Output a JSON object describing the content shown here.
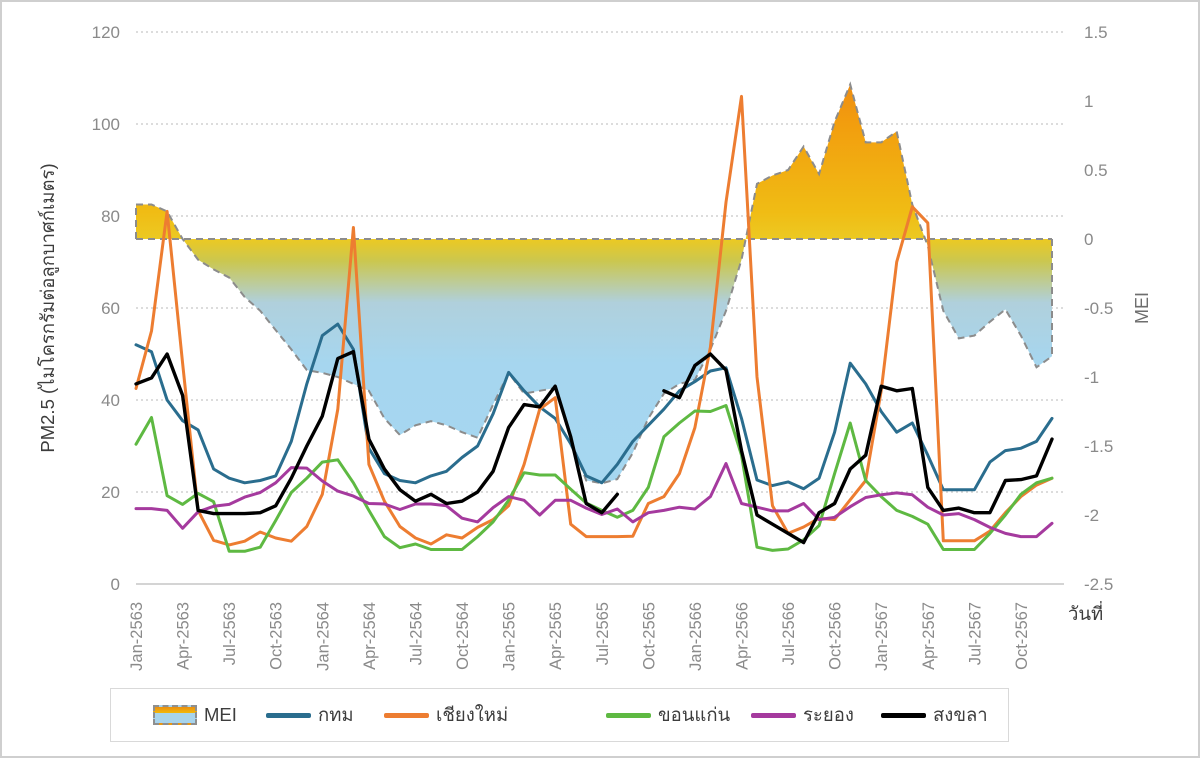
{
  "chart_data": {
    "type": "line",
    "description": "Monthly PM2.5 of 5 Thai provinces (lines, left axis) overlaid with MEI index (dashed-border gradient area, right axis), Jan 2563 - Dec 2567 (Buddhist era)",
    "n_points": 60,
    "points_per_tick": 3,
    "x_axis": {
      "label": "วันที่",
      "tick_labels": [
        "Jan-2563",
        "Apr-2563",
        "Jul-2563",
        "Oct-2563",
        "Jan-2564",
        "Apr-2564",
        "Jul-2564",
        "Oct-2564",
        "Jan-2565",
        "Apr-2565",
        "Jul-2565",
        "Oct-2565",
        "Jan-2566",
        "Apr-2566",
        "Jul-2566",
        "Oct-2566",
        "Jan-2567",
        "Apr-2567",
        "Jul-2567",
        "Oct-2567"
      ]
    },
    "left_axis": {
      "label": "PM2.5 (ไมโครกรัมต่อลูกบาศก์เมตร)",
      "ticks": [
        "0",
        "20",
        "40",
        "60",
        "80",
        "100",
        "120"
      ],
      "min": 0,
      "max": 120,
      "grid": true
    },
    "right_axis": {
      "label": "MEI",
      "ticks": [
        "1.5",
        "1",
        "0.5",
        "0",
        "-0.5",
        "-1",
        "-1.5",
        "-2",
        "-2.5"
      ],
      "min": -2.5,
      "max": 1.5
    },
    "area_series": {
      "name": "MEI",
      "axis": "right",
      "border_color": "#8c8c8c",
      "gradient": [
        {
          "offset": 0.0,
          "color": "#e97818"
        },
        {
          "offset": 0.163,
          "color": "#f29d0e"
        },
        {
          "offset": 0.326,
          "color": "#f0bc14"
        },
        {
          "offset": 0.375,
          "color": "#ecc922"
        },
        {
          "offset": 0.415,
          "color": "#cbc74f"
        },
        {
          "offset": 0.49,
          "color": "#b0d0dc"
        },
        {
          "offset": 0.6,
          "color": "#a6d6ef"
        },
        {
          "offset": 1.0,
          "color": "#a6d8f1"
        }
      ],
      "values": [
        0.25,
        0.25,
        0.2,
        0,
        -0.15,
        -0.22,
        -0.28,
        -0.42,
        -0.52,
        -0.66,
        -0.8,
        -0.95,
        -0.97,
        -1,
        -1.05,
        -1.1,
        -1.3,
        -1.42,
        -1.35,
        -1.32,
        -1.35,
        -1.4,
        -1.44,
        -1.2,
        -0.97,
        -1.12,
        -1.1,
        -1.08,
        -1.45,
        -1.75,
        -1.77,
        -1.74,
        -1.55,
        -1.3,
        -1.12,
        -1.05,
        -1.02,
        -0.8,
        -0.52,
        -0.15,
        0.4,
        0.46,
        0.5,
        0.67,
        0.47,
        0.85,
        1.12,
        0.7,
        0.7,
        0.78,
        0.25,
        -0.05,
        -0.52,
        -0.72,
        -0.7,
        -0.6,
        -0.51,
        -0.7,
        -0.93,
        -0.85
      ]
    },
    "series": [
      {
        "name": "กทม",
        "color": "#2a6d8e",
        "values": [
          52,
          50.5,
          40,
          35.5,
          33.5,
          25,
          23,
          22,
          22.5,
          23.5,
          31,
          43.5,
          54,
          56.5,
          51,
          29.5,
          24,
          22.5,
          22,
          23.5,
          24.5,
          27.5,
          30,
          37,
          46,
          42,
          38.5,
          36,
          30.5,
          23.5,
          22,
          26,
          31,
          34.5,
          38,
          42,
          44,
          46.3,
          47,
          36,
          22.6,
          21.4,
          22.2,
          20.7,
          23,
          33,
          48,
          43.5,
          37.5,
          33,
          35,
          28,
          20.5,
          20.5,
          20.5,
          26.5,
          29,
          29.5,
          31,
          36
        ]
      },
      {
        "name": "เชียงใหม่",
        "color": "#ed7d31",
        "values": [
          42.5,
          55,
          81,
          48,
          16,
          9.5,
          8.5,
          9.3,
          11.3,
          10,
          9.3,
          12.5,
          19.5,
          38,
          77.5,
          26,
          18,
          12.5,
          10,
          8.7,
          10.7,
          10,
          12.3,
          14,
          17,
          26,
          38,
          40.5,
          13,
          10.3,
          10.3,
          10.3,
          10.4,
          17.5,
          19,
          24,
          34,
          51.5,
          83,
          106,
          45,
          17,
          11,
          12.4,
          14.3,
          14,
          18.3,
          22.5,
          42,
          70,
          82,
          78.5,
          9.4,
          9.4,
          9.4,
          11.5,
          15.5,
          19,
          21.5,
          23
        ]
      },
      {
        "name": "ขอนแก่น",
        "color": "#5eb942",
        "values": [
          30.4,
          36.2,
          19.2,
          17.3,
          19.7,
          17.9,
          7.1,
          7.1,
          8,
          13.8,
          19.9,
          23,
          26.5,
          27,
          22,
          16,
          10.3,
          7.9,
          8.7,
          7.5,
          7.5,
          7.5,
          10.3,
          13.5,
          18.2,
          24.2,
          23.7,
          23.7,
          20.6,
          17.6,
          16,
          14.5,
          16,
          21,
          32,
          35,
          37.6,
          37.5,
          38.8,
          28,
          8,
          7.3,
          7.6,
          9.6,
          12.7,
          24,
          35,
          22.5,
          19,
          16,
          14.7,
          13,
          7.5,
          7.5,
          7.5,
          11,
          15,
          19.5,
          22,
          23
        ]
      },
      {
        "name": "ระยอง",
        "color": "#a53a9e",
        "values": [
          16.4,
          16.4,
          16,
          12.1,
          15.7,
          16.9,
          17.3,
          18.9,
          19.9,
          22,
          25.3,
          25.2,
          22.4,
          20.2,
          19.1,
          17.5,
          17.4,
          16.2,
          17.4,
          17.4,
          17,
          14.3,
          13.5,
          16.6,
          19,
          18.2,
          15,
          18.2,
          18.2,
          16.5,
          15.1,
          16.3,
          13.5,
          15.5,
          16,
          16.7,
          16.3,
          19,
          26.2,
          17.5,
          16.7,
          15.9,
          15.9,
          17.5,
          14,
          14.5,
          16.8,
          18.8,
          19.4,
          19.8,
          19.4,
          16.7,
          15,
          15.3,
          14,
          12.3,
          11,
          10.3,
          10.3,
          13.2
        ]
      },
      {
        "name": "สงขลา",
        "color": "#000000",
        "values": [
          43.5,
          44.8,
          50,
          41,
          16,
          15.3,
          15.3,
          15.3,
          15.5,
          17,
          23,
          30,
          36.5,
          49,
          50.5,
          31.5,
          25,
          20.5,
          18,
          19.5,
          17.5,
          18,
          20,
          24.5,
          34,
          39,
          38.5,
          43,
          32,
          17.5,
          15.5,
          19.5,
          null,
          null,
          42,
          40.5,
          47.5,
          50,
          46.5,
          29,
          15,
          13,
          11,
          9,
          15.5,
          17.5,
          25,
          28,
          43,
          42,
          42.5,
          21,
          16,
          16.5,
          15.5,
          15.5,
          22.5,
          22.7,
          23.5,
          31.5
        ]
      }
    ],
    "legend": {
      "entries": [
        "MEI",
        "กทม",
        "เชียงใหม่",
        "ขอนแก่น",
        "ระยอง",
        "สงขลา"
      ],
      "item_offsets": [
        42,
        155,
        273,
        495,
        640,
        770
      ]
    },
    "grid_color": "#c8c8c8",
    "axis_line_color": "#c6c6c6"
  }
}
